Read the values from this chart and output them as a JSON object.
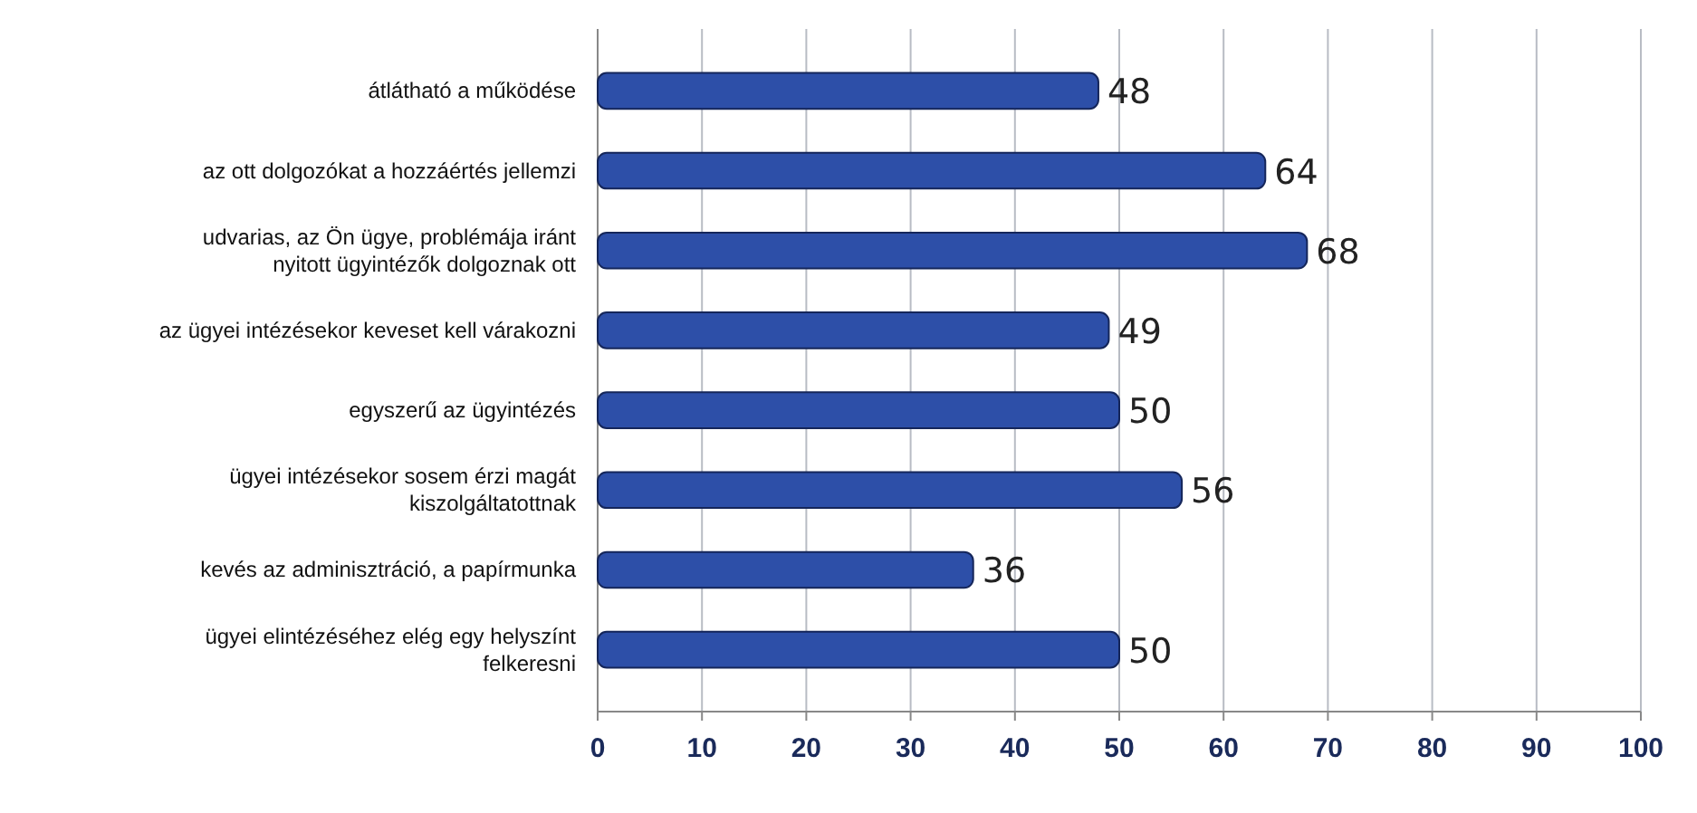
{
  "chart_data": {
    "type": "bar",
    "orientation": "horizontal",
    "categories": [
      "átlátható a működése",
      "az ott dolgozókat a hozzáértés jellemzi",
      "udvarias, az Ön ügye, problémája iránt nyitott ügyintézők dolgoznak ott",
      "az ügyei intézésekor keveset kell várakozni",
      "egyszerű az ügyintézés",
      "ügyei intézésekor sosem érzi magát kiszolgáltatottnak",
      "kevés az adminisztráció, a papírmunka",
      "ügyei elintézéséhez elég egy helyszínt felkeresni"
    ],
    "values": [
      48,
      64,
      68,
      49,
      50,
      56,
      36,
      50
    ],
    "color": "#2d4fa8",
    "xlim": [
      0,
      100
    ],
    "xticks": [
      0,
      10,
      20,
      30,
      40,
      50,
      60,
      70,
      80,
      90,
      100
    ],
    "grid": "x",
    "data_labels": true
  }
}
